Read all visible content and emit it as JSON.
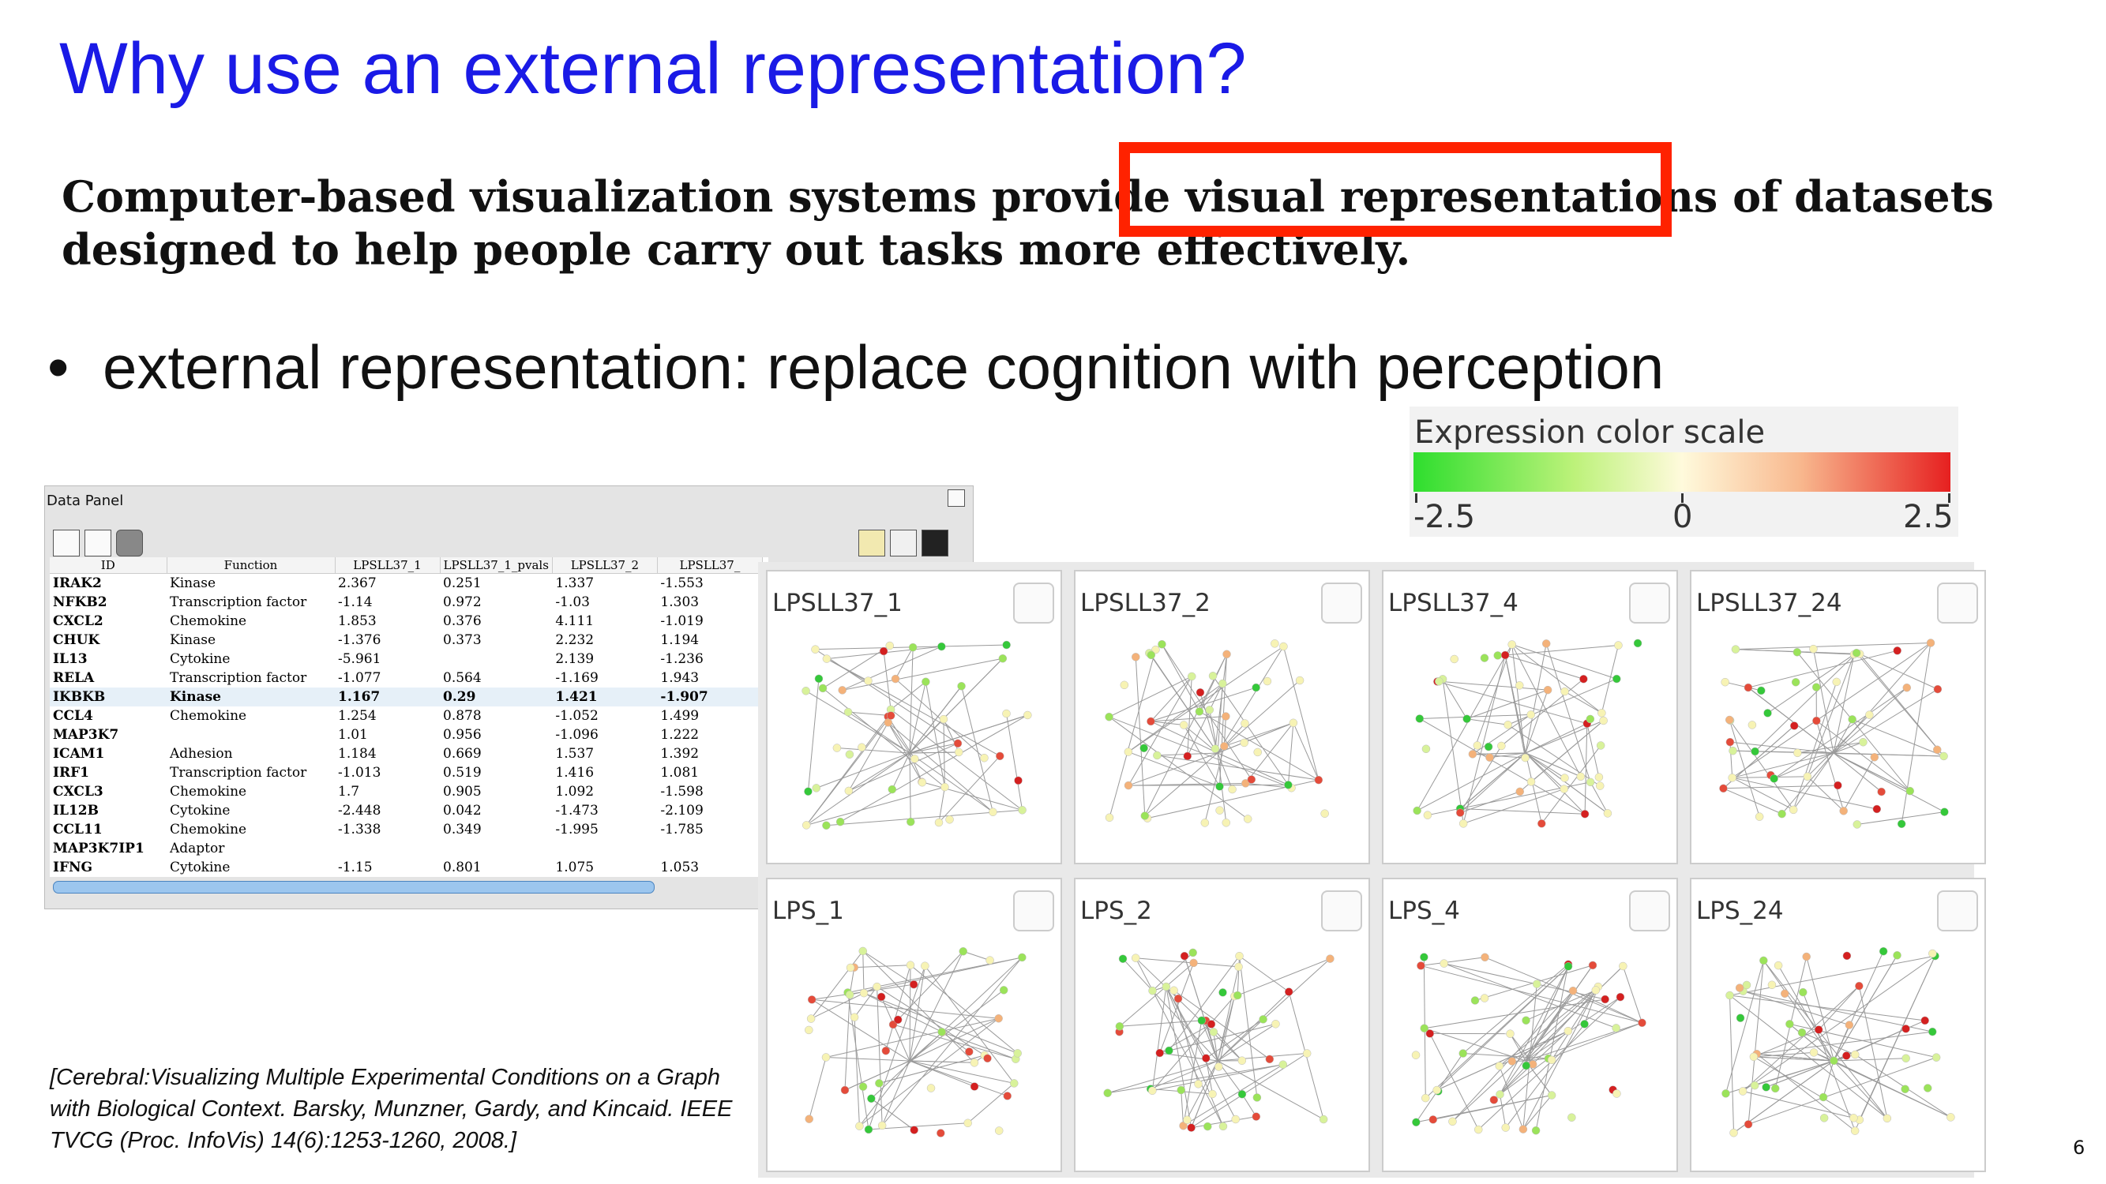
{
  "slide": {
    "title": "Why use an external representation?",
    "quote_line1": "Computer-based visualization systems provide visual representations of datasets",
    "quote_line2": "designed to help people carry out tasks more effectively.",
    "bullet": "external representation: replace cognition with perception",
    "bullet_symbol": "•",
    "page_number": "6"
  },
  "highlight_color": "#ff2200",
  "color_scale": {
    "title": "Expression color scale",
    "min_label": "-2.5",
    "mid_label": "0",
    "max_label": "2.5",
    "colors": [
      "#2ede2e",
      "#fffadc",
      "#e62020"
    ]
  },
  "data_panel": {
    "title": "Data Panel",
    "columns": [
      "ID",
      "Function",
      "LPSLL37_1",
      "LPSLL37_1_pvals",
      "LPSLL37_2",
      "LPSLL37_"
    ],
    "rows": [
      [
        "IRAK2",
        "Kinase",
        "2.367",
        "0.251",
        "1.337",
        "-1.553"
      ],
      [
        "NFKB2",
        "Transcription factor",
        "-1.14",
        "0.972",
        "-1.03",
        "1.303"
      ],
      [
        "CXCL2",
        "Chemokine",
        "1.853",
        "0.376",
        "4.111",
        "-1.019"
      ],
      [
        "CHUK",
        "Kinase",
        "-1.376",
        "0.373",
        "2.232",
        "1.194"
      ],
      [
        "IL13",
        "Cytokine",
        "-5.961",
        "",
        "2.139",
        "-1.236"
      ],
      [
        "RELA",
        "Transcription factor",
        "-1.077",
        "0.564",
        "-1.169",
        "1.943"
      ],
      [
        "IKBKB",
        "Kinase",
        "1.167",
        "0.29",
        "1.421",
        "-1.907"
      ],
      [
        "CCL4",
        "Chemokine",
        "1.254",
        "0.878",
        "-1.052",
        "1.499"
      ],
      [
        "MAP3K7",
        "",
        "1.01",
        "0.956",
        "-1.096",
        "1.222"
      ],
      [
        "ICAM1",
        "Adhesion",
        "1.184",
        "0.669",
        "1.537",
        "1.392"
      ],
      [
        "IRF1",
        "Transcription factor",
        "-1.013",
        "0.519",
        "1.416",
        "1.081"
      ],
      [
        "CXCL3",
        "Chemokine",
        "1.7",
        "0.905",
        "1.092",
        "-1.598"
      ],
      [
        "IL12B",
        "Cytokine",
        "-2.448",
        "0.042",
        "-1.473",
        "-2.109"
      ],
      [
        "CCL11",
        "Chemokine",
        "-1.338",
        "0.349",
        "-1.995",
        "-1.785"
      ],
      [
        "MAP3K7IP1",
        "Adaptor",
        "",
        "",
        "",
        ""
      ],
      [
        "IFNG",
        "Cytokine",
        "-1.15",
        "0.801",
        "1.075",
        "1.053"
      ]
    ],
    "selected_row": "IKBKB"
  },
  "networks": [
    {
      "label": "LPSLL37_1"
    },
    {
      "label": "LPSLL37_2"
    },
    {
      "label": "LPSLL37_4"
    },
    {
      "label": "LPSLL37_24"
    },
    {
      "label": "LPS_1"
    },
    {
      "label": "LPS_2"
    },
    {
      "label": "LPS_4"
    },
    {
      "label": "LPS_24"
    }
  ],
  "citation": {
    "line1": "[Cerebral:Visualizing Multiple Experimental Conditions on a Graph",
    "line2": "with Biological Context. Barsky, Munzner, Gardy, and Kincaid. IEEE",
    "line3": "TVCG (Proc. InfoVis) 14(6):1253-1260, 2008.]"
  }
}
